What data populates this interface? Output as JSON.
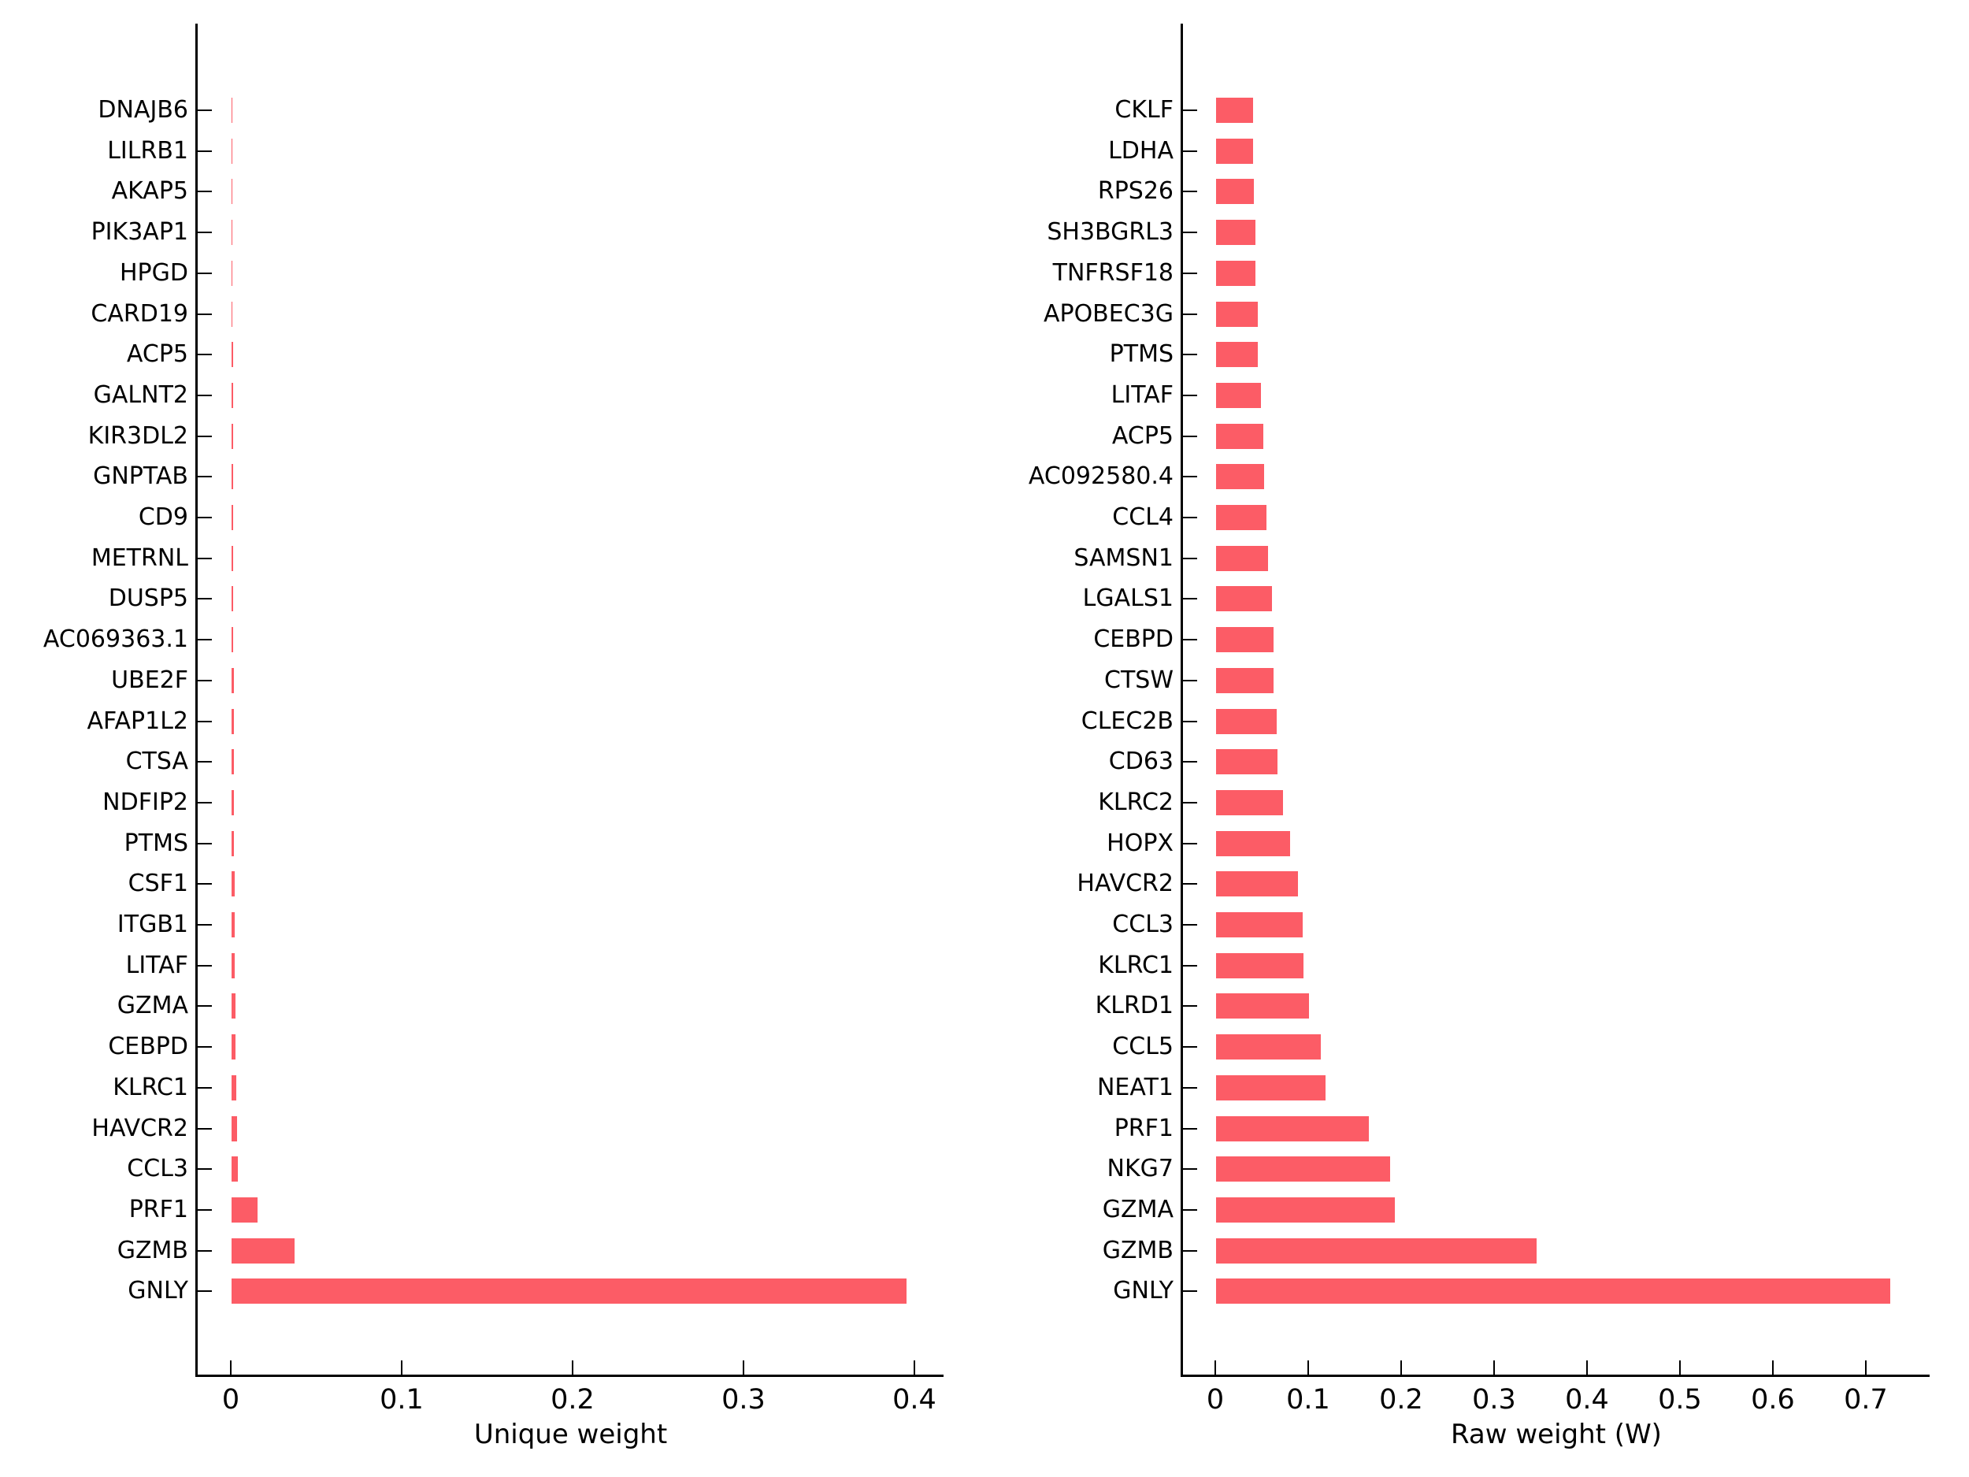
{
  "figure": {
    "background": "#ffffff",
    "bar_color": "#fc5c66",
    "text_color": "#000000"
  },
  "chart_data": [
    {
      "type": "bar",
      "orientation": "horizontal",
      "title": "",
      "xlabel": "Unique weight",
      "ylabel": "",
      "order": "top-to-bottom",
      "grid": false,
      "xlim": [
        0,
        0.42
      ],
      "x_ticks": [
        0,
        0.1,
        0.2,
        0.3,
        0.4
      ],
      "x_tick_labels": [
        "0",
        "0.1",
        "0.2",
        "0.3",
        "0.4"
      ],
      "categories": [
        "DNAJB6",
        "LILRB1",
        "AKAP5",
        "PIK3AP1",
        "HPGD",
        "CARD19",
        "ACP5",
        "GALNT2",
        "KIR3DL2",
        "GNPTAB",
        "CD9",
        "METRNL",
        "DUSP5",
        "AC069363.1",
        "UBE2F",
        "AFAP1L2",
        "CTSA",
        "NDFIP2",
        "PTMS",
        "CSF1",
        "ITGB1",
        "LITAF",
        "GZMA",
        "CEBPD",
        "KLRC1",
        "HAVCR2",
        "CCL3",
        "PRF1",
        "GZMB",
        "GNLY"
      ],
      "values": [
        0.0003,
        0.0004,
        0.0004,
        0.0005,
        0.0006,
        0.0006,
        0.0007,
        0.0007,
        0.0008,
        0.0008,
        0.0009,
        0.001,
        0.0011,
        0.0011,
        0.0012,
        0.0013,
        0.0014,
        0.0015,
        0.0016,
        0.0017,
        0.0018,
        0.002,
        0.0022,
        0.0024,
        0.0027,
        0.003,
        0.0035,
        0.015,
        0.037,
        0.395
      ]
    },
    {
      "type": "bar",
      "orientation": "horizontal",
      "title": "",
      "xlabel": "Raw weight (W)",
      "ylabel": "",
      "order": "top-to-bottom",
      "grid": false,
      "xlim": [
        0,
        0.77
      ],
      "x_ticks": [
        0,
        0.1,
        0.2,
        0.3,
        0.4,
        0.5,
        0.6,
        0.7
      ],
      "x_tick_labels": [
        "0",
        "0.1",
        "0.2",
        "0.3",
        "0.4",
        "0.5",
        "0.6",
        "0.7"
      ],
      "categories": [
        "CKLF",
        "LDHA",
        "RPS26",
        "SH3BGRL3",
        "TNFRSF18",
        "APOBEC3G",
        "PTMS",
        "LITAF",
        "ACP5",
        "AC092580.4",
        "CCL4",
        "SAMSN1",
        "LGALS1",
        "CEBPD",
        "CTSW",
        "CLEC2B",
        "CD63",
        "KLRC2",
        "HOPX",
        "HAVCR2",
        "CCL3",
        "KLRC1",
        "KLRD1",
        "CCL5",
        "NEAT1",
        "PRF1",
        "NKG7",
        "GZMA",
        "GZMB",
        "GNLY"
      ],
      "values": [
        0.04,
        0.04,
        0.041,
        0.042,
        0.042,
        0.045,
        0.045,
        0.048,
        0.051,
        0.052,
        0.054,
        0.056,
        0.06,
        0.062,
        0.062,
        0.065,
        0.066,
        0.072,
        0.08,
        0.088,
        0.093,
        0.094,
        0.1,
        0.113,
        0.118,
        0.164,
        0.187,
        0.192,
        0.345,
        0.725
      ]
    }
  ]
}
